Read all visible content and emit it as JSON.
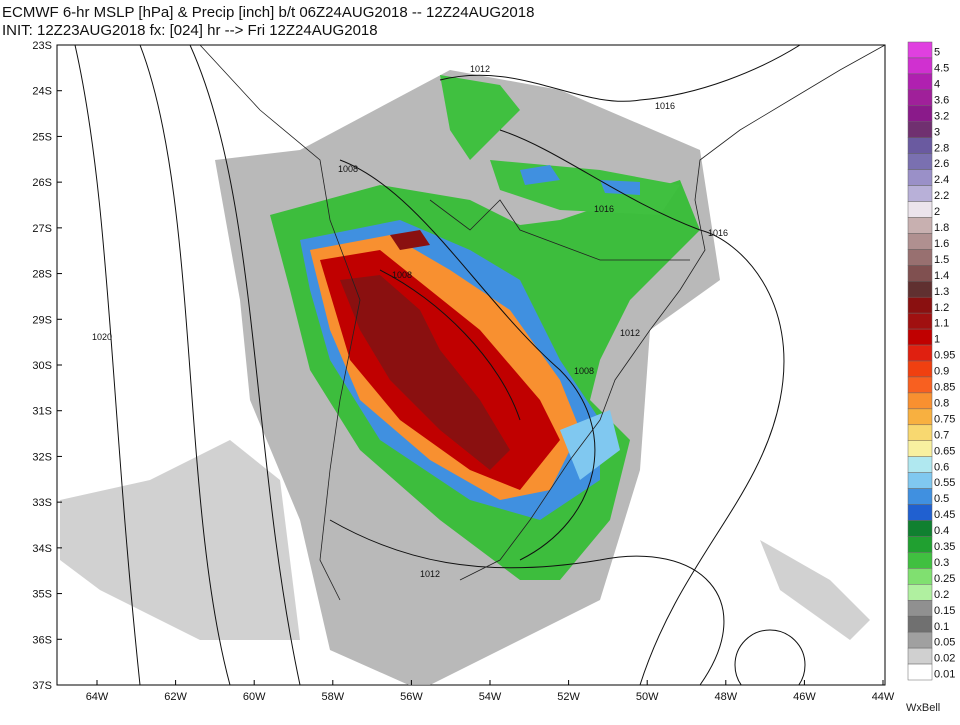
{
  "header": {
    "line1": "ECMWF 6-hr MSLP [hPa] & Precip [inch] b/t 06Z24AUG2018 -- 12Z24AUG2018",
    "line2": "INIT: 12Z23AUG2018 fx: [024] hr --> Fri 12Z24AUG2018"
  },
  "map": {
    "lat_labels": [
      "23S",
      "24S",
      "25S",
      "26S",
      "27S",
      "28S",
      "29S",
      "30S",
      "31S",
      "32S",
      "33S",
      "34S",
      "35S",
      "36S",
      "37S"
    ],
    "lon_labels": [
      "64W",
      "62W",
      "60W",
      "58W",
      "56W",
      "54W",
      "52W",
      "50W",
      "48W",
      "46W",
      "44W"
    ],
    "contour_labels": [
      "1012",
      "1016",
      "1008",
      "1016",
      "1016",
      "1008",
      "1020",
      "1012",
      "1008",
      "1012"
    ]
  },
  "colorbar": {
    "labels": [
      5,
      4.5,
      4,
      3.6,
      3.2,
      3,
      2.8,
      2.6,
      2.4,
      2.2,
      2,
      1.8,
      1.6,
      1.5,
      1.4,
      1.3,
      1.2,
      1.1,
      1,
      0.95,
      0.9,
      0.85,
      0.8,
      0.75,
      0.7,
      0.65,
      0.6,
      0.55,
      0.5,
      0.45,
      0.4,
      0.35,
      0.3,
      0.25,
      0.2,
      0.15,
      0.1,
      0.05,
      0.02,
      0.01
    ],
    "colors": [
      "#e040e0",
      "#d030d0",
      "#b020b0",
      "#a0209a",
      "#8a1a8a",
      "#703070",
      "#6a5aa0",
      "#7a70b0",
      "#9a90c8",
      "#b8b0d8",
      "#ece4ec",
      "#c8b0b0",
      "#b09090",
      "#987070",
      "#805050",
      "#603030",
      "#8a1010",
      "#a01010",
      "#c00000",
      "#e02010",
      "#f04010",
      "#f86020",
      "#f89030",
      "#f8b040",
      "#f8d870",
      "#f8f0a0",
      "#b0e8f0",
      "#80c8f0",
      "#4090e0",
      "#2060d0",
      "#108030",
      "#20a030",
      "#40c040",
      "#80e070",
      "#b0f0a0",
      "#909090",
      "#707070",
      "#a0a0a0",
      "#d0d0d0",
      "#ffffff"
    ]
  },
  "logo": "WxBell"
}
